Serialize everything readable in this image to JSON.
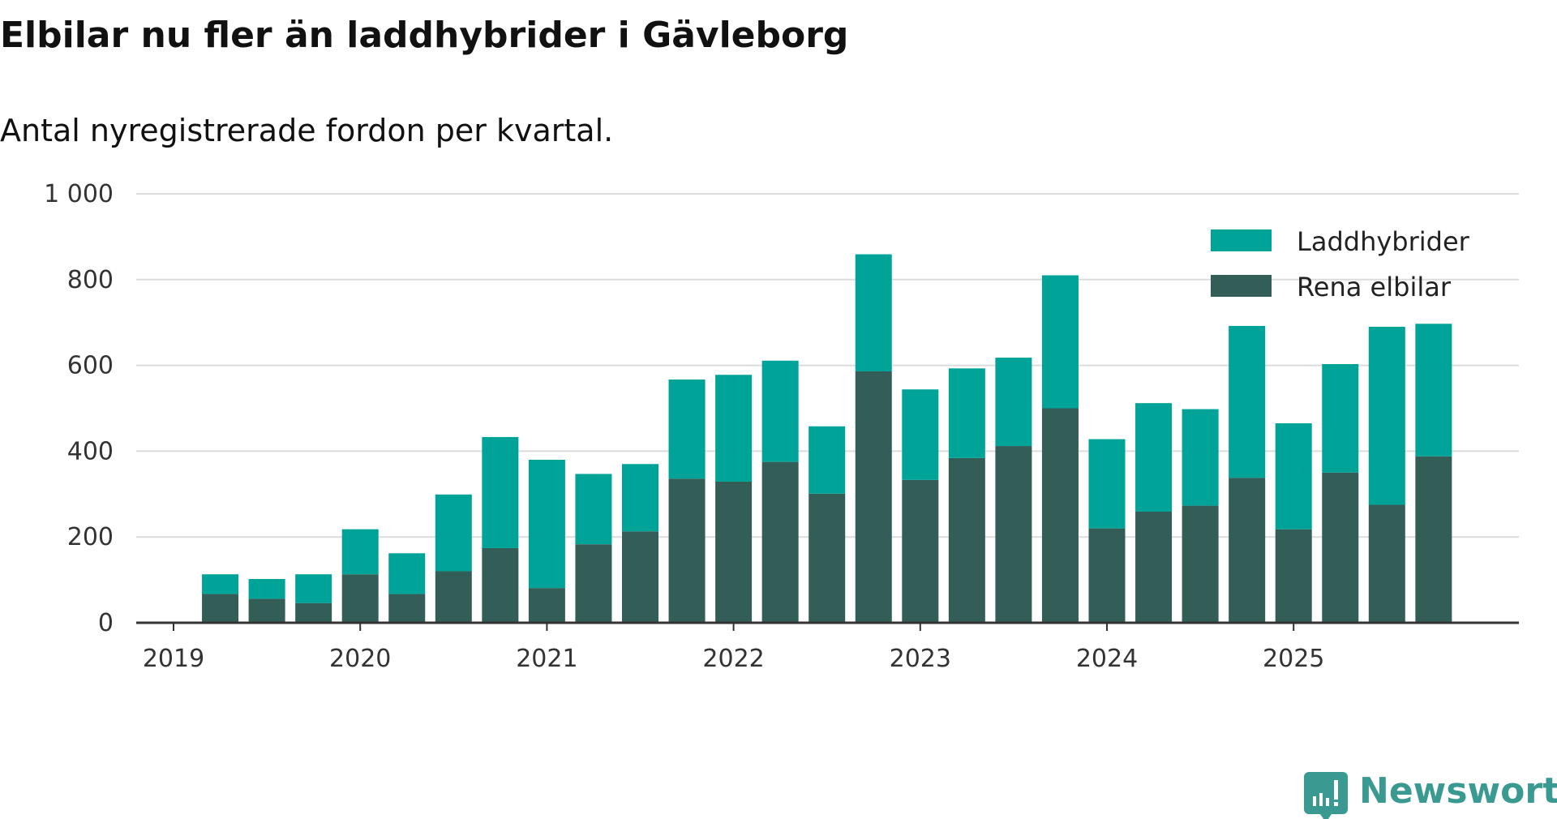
{
  "chart_data": {
    "type": "bar",
    "stacked": true,
    "title": "Elbilar nu fler än laddhybrider i Gävleborg",
    "subtitle": "Antal nyregistrerade fordon per kvartal.",
    "xlabel": "",
    "ylabel": "",
    "ylim": [
      0,
      1000
    ],
    "yticks": [
      0,
      200,
      400,
      600,
      800,
      1000
    ],
    "ytick_labels": [
      "0",
      "200",
      "400",
      "600",
      "800",
      "1 000"
    ],
    "xtick_labels": [
      "2019",
      "2020",
      "2021",
      "2022",
      "2023",
      "2024",
      "2025"
    ],
    "grid": true,
    "legend_position": "top-right",
    "categories": [
      "2019Q1",
      "2019Q2",
      "2019Q3",
      "2019Q4",
      "2020Q1",
      "2020Q2",
      "2020Q3",
      "2020Q4",
      "2021Q1",
      "2021Q2",
      "2021Q3",
      "2021Q4",
      "2022Q1",
      "2022Q2",
      "2022Q3",
      "2022Q4",
      "2023Q1",
      "2023Q2",
      "2023Q3",
      "2023Q4",
      "2024Q1",
      "2024Q2",
      "2024Q3",
      "2024Q4",
      "2025Q1",
      "2025Q2",
      "2025Q3"
    ],
    "series": [
      {
        "name": "Rena elbilar",
        "color": "#335e57",
        "values": [
          67,
          56,
          46,
          113,
          67,
          120,
          174,
          81,
          183,
          213,
          336,
          329,
          375,
          301,
          586,
          333,
          384,
          412,
          500,
          220,
          259,
          273,
          338,
          218,
          350,
          275,
          388
        ]
      },
      {
        "name": "Laddhybrider",
        "color": "#00a398",
        "values": [
          46,
          46,
          67,
          105,
          95,
          179,
          259,
          299,
          164,
          157,
          231,
          249,
          236,
          157,
          273,
          211,
          209,
          206,
          310,
          208,
          253,
          225,
          354,
          247,
          253,
          415,
          309
        ]
      }
    ],
    "legend_order": [
      "Laddhybrider",
      "Rena elbilar"
    ]
  },
  "branding": {
    "logo_text": "Newsworthy",
    "color": "#3a9a92"
  }
}
